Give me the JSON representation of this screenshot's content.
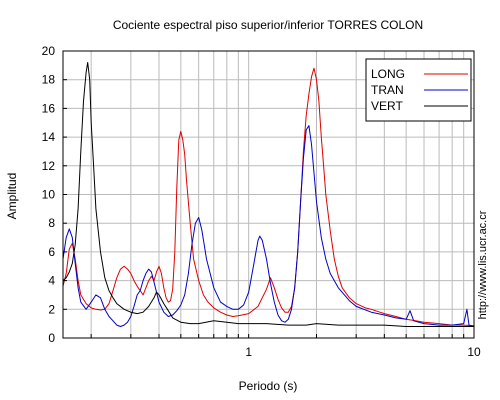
{
  "chart_data": {
    "type": "line",
    "title": "Cociente espectral piso superior/inferior  TORRES COLON",
    "xlabel": "Periodo (s)",
    "ylabel": "Amplitud",
    "x_scale": "log",
    "xlim": [
      0.15,
      10
    ],
    "ylim": [
      0,
      20
    ],
    "x_tick_labels": [
      {
        "value": 1,
        "label": "1"
      },
      {
        "value": 10,
        "label": "10"
      }
    ],
    "y_ticks": [
      0,
      2,
      4,
      6,
      8,
      10,
      12,
      14,
      16,
      18,
      20
    ],
    "grid": true,
    "legend_position": "top-right",
    "side_text": "http://www.lis.ucr.ac.cr",
    "series": [
      {
        "name": "LONG",
        "color": "#e00000",
        "points": [
          [
            0.15,
            3.6
          ],
          [
            0.155,
            4.5
          ],
          [
            0.16,
            6.2
          ],
          [
            0.165,
            6.6
          ],
          [
            0.17,
            5.5
          ],
          [
            0.175,
            4.0
          ],
          [
            0.18,
            3.0
          ],
          [
            0.19,
            2.4
          ],
          [
            0.2,
            2.1
          ],
          [
            0.21,
            2.0
          ],
          [
            0.22,
            1.95
          ],
          [
            0.23,
            2.0
          ],
          [
            0.24,
            2.4
          ],
          [
            0.25,
            3.3
          ],
          [
            0.26,
            4.2
          ],
          [
            0.27,
            4.8
          ],
          [
            0.28,
            5.0
          ],
          [
            0.29,
            4.8
          ],
          [
            0.3,
            4.5
          ],
          [
            0.31,
            4.0
          ],
          [
            0.32,
            3.6
          ],
          [
            0.33,
            3.3
          ],
          [
            0.34,
            3.0
          ],
          [
            0.35,
            3.5
          ],
          [
            0.36,
            4.0
          ],
          [
            0.37,
            4.3
          ],
          [
            0.38,
            4.0
          ],
          [
            0.39,
            4.6
          ],
          [
            0.4,
            5.0
          ],
          [
            0.41,
            4.5
          ],
          [
            0.42,
            3.5
          ],
          [
            0.43,
            2.8
          ],
          [
            0.44,
            2.5
          ],
          [
            0.45,
            2.6
          ],
          [
            0.46,
            3.4
          ],
          [
            0.47,
            6.0
          ],
          [
            0.48,
            10.5
          ],
          [
            0.49,
            13.8
          ],
          [
            0.5,
            14.4
          ],
          [
            0.51,
            13.8
          ],
          [
            0.52,
            12.8
          ],
          [
            0.53,
            11.0
          ],
          [
            0.55,
            8.0
          ],
          [
            0.57,
            5.5
          ],
          [
            0.6,
            4.0
          ],
          [
            0.63,
            3.0
          ],
          [
            0.66,
            2.5
          ],
          [
            0.7,
            2.1
          ],
          [
            0.75,
            1.8
          ],
          [
            0.8,
            1.6
          ],
          [
            0.85,
            1.5
          ],
          [
            0.9,
            1.55
          ],
          [
            1.0,
            1.7
          ],
          [
            1.1,
            2.2
          ],
          [
            1.2,
            3.4
          ],
          [
            1.25,
            4.2
          ],
          [
            1.3,
            3.5
          ],
          [
            1.35,
            2.7
          ],
          [
            1.4,
            2.1
          ],
          [
            1.45,
            1.8
          ],
          [
            1.5,
            1.8
          ],
          [
            1.55,
            2.2
          ],
          [
            1.6,
            3.5
          ],
          [
            1.65,
            6.0
          ],
          [
            1.7,
            9.5
          ],
          [
            1.75,
            13.0
          ],
          [
            1.8,
            15.5
          ],
          [
            1.85,
            17.0
          ],
          [
            1.9,
            18.2
          ],
          [
            1.95,
            18.8
          ],
          [
            2.0,
            18.0
          ],
          [
            2.05,
            16.5
          ],
          [
            2.1,
            14.0
          ],
          [
            2.15,
            12.0
          ],
          [
            2.2,
            10.0
          ],
          [
            2.3,
            7.5
          ],
          [
            2.4,
            5.5
          ],
          [
            2.5,
            4.3
          ],
          [
            2.6,
            3.5
          ],
          [
            2.8,
            2.8
          ],
          [
            3.0,
            2.4
          ],
          [
            3.3,
            2.1
          ],
          [
            3.5,
            2.0
          ],
          [
            4.0,
            1.7
          ],
          [
            4.5,
            1.5
          ],
          [
            5.0,
            1.3
          ],
          [
            5.5,
            1.2
          ],
          [
            6.0,
            1.1
          ],
          [
            7.0,
            1.0
          ],
          [
            8.0,
            0.9
          ],
          [
            9.0,
            0.9
          ],
          [
            10.0,
            0.85
          ]
        ]
      },
      {
        "name": "TRAN",
        "color": "#0000cc",
        "points": [
          [
            0.15,
            5.5
          ],
          [
            0.155,
            7.0
          ],
          [
            0.16,
            7.6
          ],
          [
            0.165,
            7.0
          ],
          [
            0.17,
            5.2
          ],
          [
            0.175,
            3.5
          ],
          [
            0.18,
            2.5
          ],
          [
            0.19,
            2.0
          ],
          [
            0.2,
            2.5
          ],
          [
            0.21,
            3.0
          ],
          [
            0.22,
            2.8
          ],
          [
            0.23,
            2.0
          ],
          [
            0.24,
            1.5
          ],
          [
            0.25,
            1.2
          ],
          [
            0.26,
            0.9
          ],
          [
            0.27,
            0.8
          ],
          [
            0.28,
            0.9
          ],
          [
            0.29,
            1.1
          ],
          [
            0.3,
            1.5
          ],
          [
            0.31,
            2.2
          ],
          [
            0.32,
            3.0
          ],
          [
            0.33,
            3.3
          ],
          [
            0.34,
            4.0
          ],
          [
            0.35,
            4.5
          ],
          [
            0.36,
            4.8
          ],
          [
            0.37,
            4.6
          ],
          [
            0.38,
            3.9
          ],
          [
            0.39,
            3.2
          ],
          [
            0.4,
            2.5
          ],
          [
            0.42,
            1.8
          ],
          [
            0.44,
            1.5
          ],
          [
            0.46,
            1.6
          ],
          [
            0.48,
            1.9
          ],
          [
            0.5,
            2.3
          ],
          [
            0.52,
            3.0
          ],
          [
            0.54,
            4.5
          ],
          [
            0.56,
            6.5
          ],
          [
            0.58,
            8.0
          ],
          [
            0.6,
            8.4
          ],
          [
            0.62,
            7.5
          ],
          [
            0.65,
            5.5
          ],
          [
            0.7,
            3.5
          ],
          [
            0.75,
            2.5
          ],
          [
            0.8,
            2.2
          ],
          [
            0.85,
            2.0
          ],
          [
            0.9,
            2.0
          ],
          [
            0.95,
            2.3
          ],
          [
            1.0,
            3.2
          ],
          [
            1.05,
            5.0
          ],
          [
            1.1,
            6.8
          ],
          [
            1.12,
            7.1
          ],
          [
            1.15,
            6.8
          ],
          [
            1.2,
            5.5
          ],
          [
            1.25,
            3.8
          ],
          [
            1.3,
            2.5
          ],
          [
            1.35,
            1.6
          ],
          [
            1.4,
            1.2
          ],
          [
            1.45,
            1.1
          ],
          [
            1.5,
            1.3
          ],
          [
            1.55,
            2.0
          ],
          [
            1.6,
            3.5
          ],
          [
            1.65,
            6.0
          ],
          [
            1.7,
            9.5
          ],
          [
            1.75,
            12.5
          ],
          [
            1.8,
            14.5
          ],
          [
            1.85,
            14.8
          ],
          [
            1.9,
            13.5
          ],
          [
            1.95,
            11.5
          ],
          [
            2.0,
            9.5
          ],
          [
            2.1,
            7.0
          ],
          [
            2.2,
            5.5
          ],
          [
            2.3,
            4.5
          ],
          [
            2.5,
            3.5
          ],
          [
            2.8,
            2.6
          ],
          [
            3.0,
            2.2
          ],
          [
            3.5,
            1.8
          ],
          [
            4.0,
            1.6
          ],
          [
            4.5,
            1.4
          ],
          [
            5.0,
            1.3
          ],
          [
            5.2,
            1.9
          ],
          [
            5.4,
            1.2
          ],
          [
            6.0,
            1.0
          ],
          [
            7.0,
            0.9
          ],
          [
            8.0,
            0.9
          ],
          [
            9.0,
            1.0
          ],
          [
            9.3,
            2.0
          ],
          [
            9.5,
            0.9
          ],
          [
            10.0,
            0.8
          ]
        ]
      },
      {
        "name": "VERT",
        "color": "#000000",
        "points": [
          [
            0.15,
            4.0
          ],
          [
            0.155,
            4.2
          ],
          [
            0.16,
            4.6
          ],
          [
            0.165,
            5.2
          ],
          [
            0.17,
            6.5
          ],
          [
            0.175,
            9.0
          ],
          [
            0.18,
            13.0
          ],
          [
            0.185,
            16.5
          ],
          [
            0.19,
            18.5
          ],
          [
            0.193,
            19.2
          ],
          [
            0.197,
            18.0
          ],
          [
            0.2,
            15.0
          ],
          [
            0.205,
            12.0
          ],
          [
            0.21,
            9.0
          ],
          [
            0.22,
            6.0
          ],
          [
            0.23,
            4.2
          ],
          [
            0.24,
            3.3
          ],
          [
            0.25,
            2.8
          ],
          [
            0.26,
            2.4
          ],
          [
            0.28,
            2.0
          ],
          [
            0.3,
            1.8
          ],
          [
            0.32,
            1.7
          ],
          [
            0.34,
            1.8
          ],
          [
            0.36,
            2.2
          ],
          [
            0.38,
            2.8
          ],
          [
            0.39,
            3.2
          ],
          [
            0.4,
            3.0
          ],
          [
            0.42,
            2.4
          ],
          [
            0.44,
            1.9
          ],
          [
            0.46,
            1.4
          ],
          [
            0.5,
            1.1
          ],
          [
            0.55,
            1.0
          ],
          [
            0.6,
            1.0
          ],
          [
            0.7,
            1.2
          ],
          [
            0.8,
            1.1
          ],
          [
            0.9,
            1.0
          ],
          [
            1.0,
            1.0
          ],
          [
            1.2,
            1.0
          ],
          [
            1.5,
            0.9
          ],
          [
            1.8,
            0.9
          ],
          [
            2.0,
            1.0
          ],
          [
            2.5,
            0.9
          ],
          [
            3.0,
            0.9
          ],
          [
            4.0,
            0.9
          ],
          [
            5.0,
            0.8
          ],
          [
            6.0,
            0.8
          ],
          [
            7.0,
            0.8
          ],
          [
            8.0,
            0.8
          ],
          [
            10.0,
            0.8
          ]
        ]
      }
    ]
  }
}
